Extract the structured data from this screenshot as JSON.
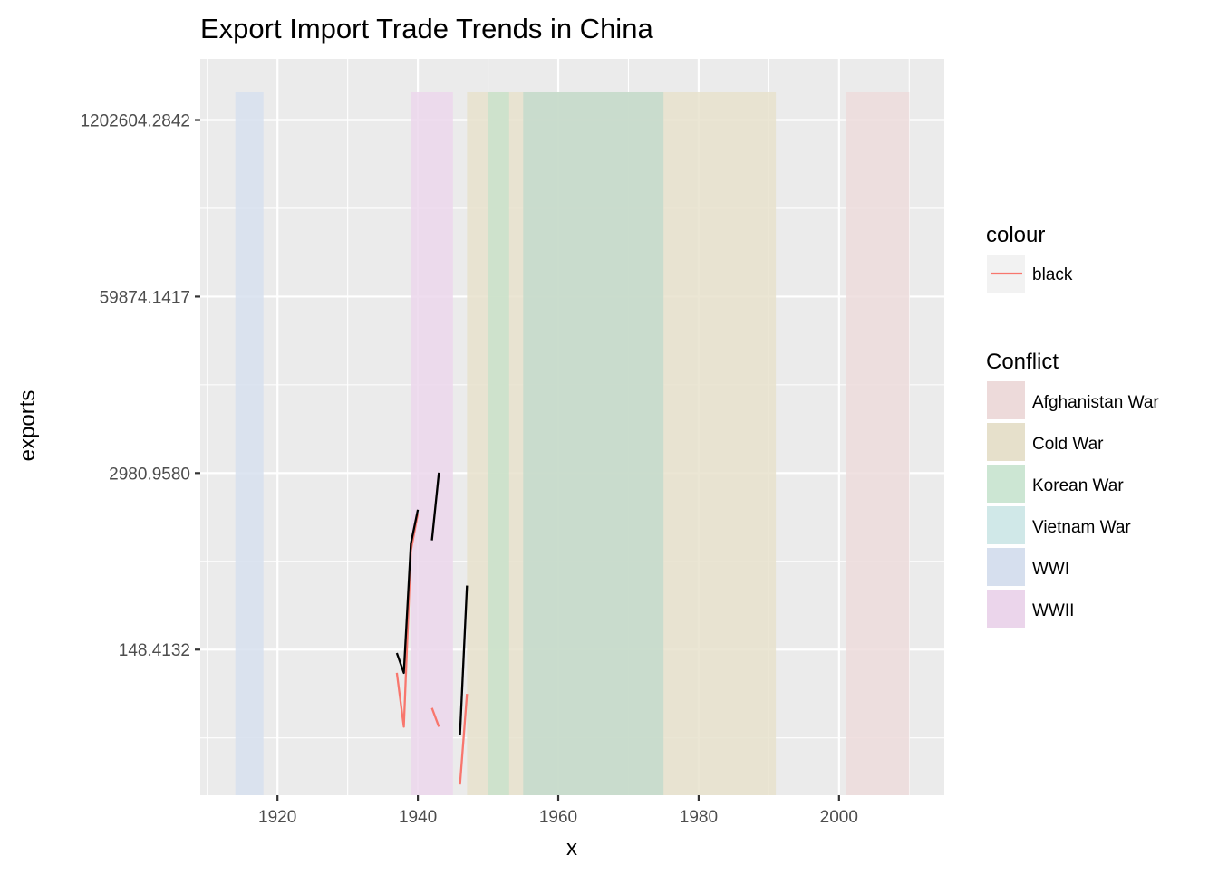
{
  "chart_data": {
    "type": "line",
    "title": "Export Import Trade Trends in China",
    "xlabel": "x",
    "ylabel": "exports",
    "y_scale": "log",
    "xlim": [
      1909,
      2015
    ],
    "ylim": [
      12.5,
      3400000
    ],
    "x_ticks": [
      1920,
      1940,
      1960,
      1980,
      2000
    ],
    "y_ticks": [
      {
        "value": 148.4132,
        "label": "148.4132"
      },
      {
        "value": 2980.958,
        "label": "2980.9580"
      },
      {
        "value": 59874.1417,
        "label": "59874.1417"
      },
      {
        "value": 1202604.2842,
        "label": "1202604.2842"
      }
    ],
    "grid": true,
    "panel_background": "#ebebeb",
    "legend_position": "right",
    "shaded_periods": [
      {
        "name": "WWI",
        "start": 1914,
        "end": 1918,
        "color": "#d6dfee"
      },
      {
        "name": "WWII",
        "start": 1939,
        "end": 1945,
        "color": "#ebd5eb"
      },
      {
        "name": "Cold War",
        "start": 1947,
        "end": 1991,
        "color": "#e6e0cb"
      },
      {
        "name": "Korean War",
        "start": 1950,
        "end": 1953,
        "color": "#c8e2cb"
      },
      {
        "name": "Vietnam War",
        "start": 1955,
        "end": 1975,
        "color": "#c2dacc"
      },
      {
        "name": "Afghanistan War",
        "start": 2001,
        "end": 2010,
        "color": "#eddada"
      }
    ],
    "series": [
      {
        "name": "black",
        "color": "#f8766d",
        "segments": [
          [
            {
              "x": 1937,
              "y": 100
            },
            {
              "x": 1938,
              "y": 40
            },
            {
              "x": 1939,
              "y": 800
            },
            {
              "x": 1940,
              "y": 1500
            }
          ],
          [
            {
              "x": 1942,
              "y": 55
            },
            {
              "x": 1943,
              "y": 40
            }
          ],
          [
            {
              "x": 1946,
              "y": 15
            },
            {
              "x": 1947,
              "y": 70
            }
          ]
        ]
      },
      {
        "color": "#000000",
        "segments": [
          [
            {
              "x": 1937,
              "y": 140
            },
            {
              "x": 1938,
              "y": 100
            },
            {
              "x": 1939,
              "y": 900
            },
            {
              "x": 1940,
              "y": 1600
            }
          ],
          [
            {
              "x": 1942,
              "y": 950
            },
            {
              "x": 1943,
              "y": 3000
            }
          ],
          [
            {
              "x": 1946,
              "y": 35
            },
            {
              "x": 1947,
              "y": 440
            }
          ]
        ]
      }
    ],
    "legends": [
      {
        "title": "colour",
        "type": "line",
        "items": [
          {
            "label": "black",
            "color": "#f8766d"
          }
        ]
      },
      {
        "title": "Conflict",
        "type": "fill",
        "items": [
          {
            "label": "Afghanistan War",
            "color": "#eddada"
          },
          {
            "label": "Cold War",
            "color": "#e6e0cb"
          },
          {
            "label": "Korean War",
            "color": "#cce6d3"
          },
          {
            "label": "Vietnam War",
            "color": "#d0e8e8"
          },
          {
            "label": "WWI",
            "color": "#d6dfee"
          },
          {
            "label": "WWII",
            "color": "#ebd5eb"
          }
        ]
      }
    ]
  }
}
